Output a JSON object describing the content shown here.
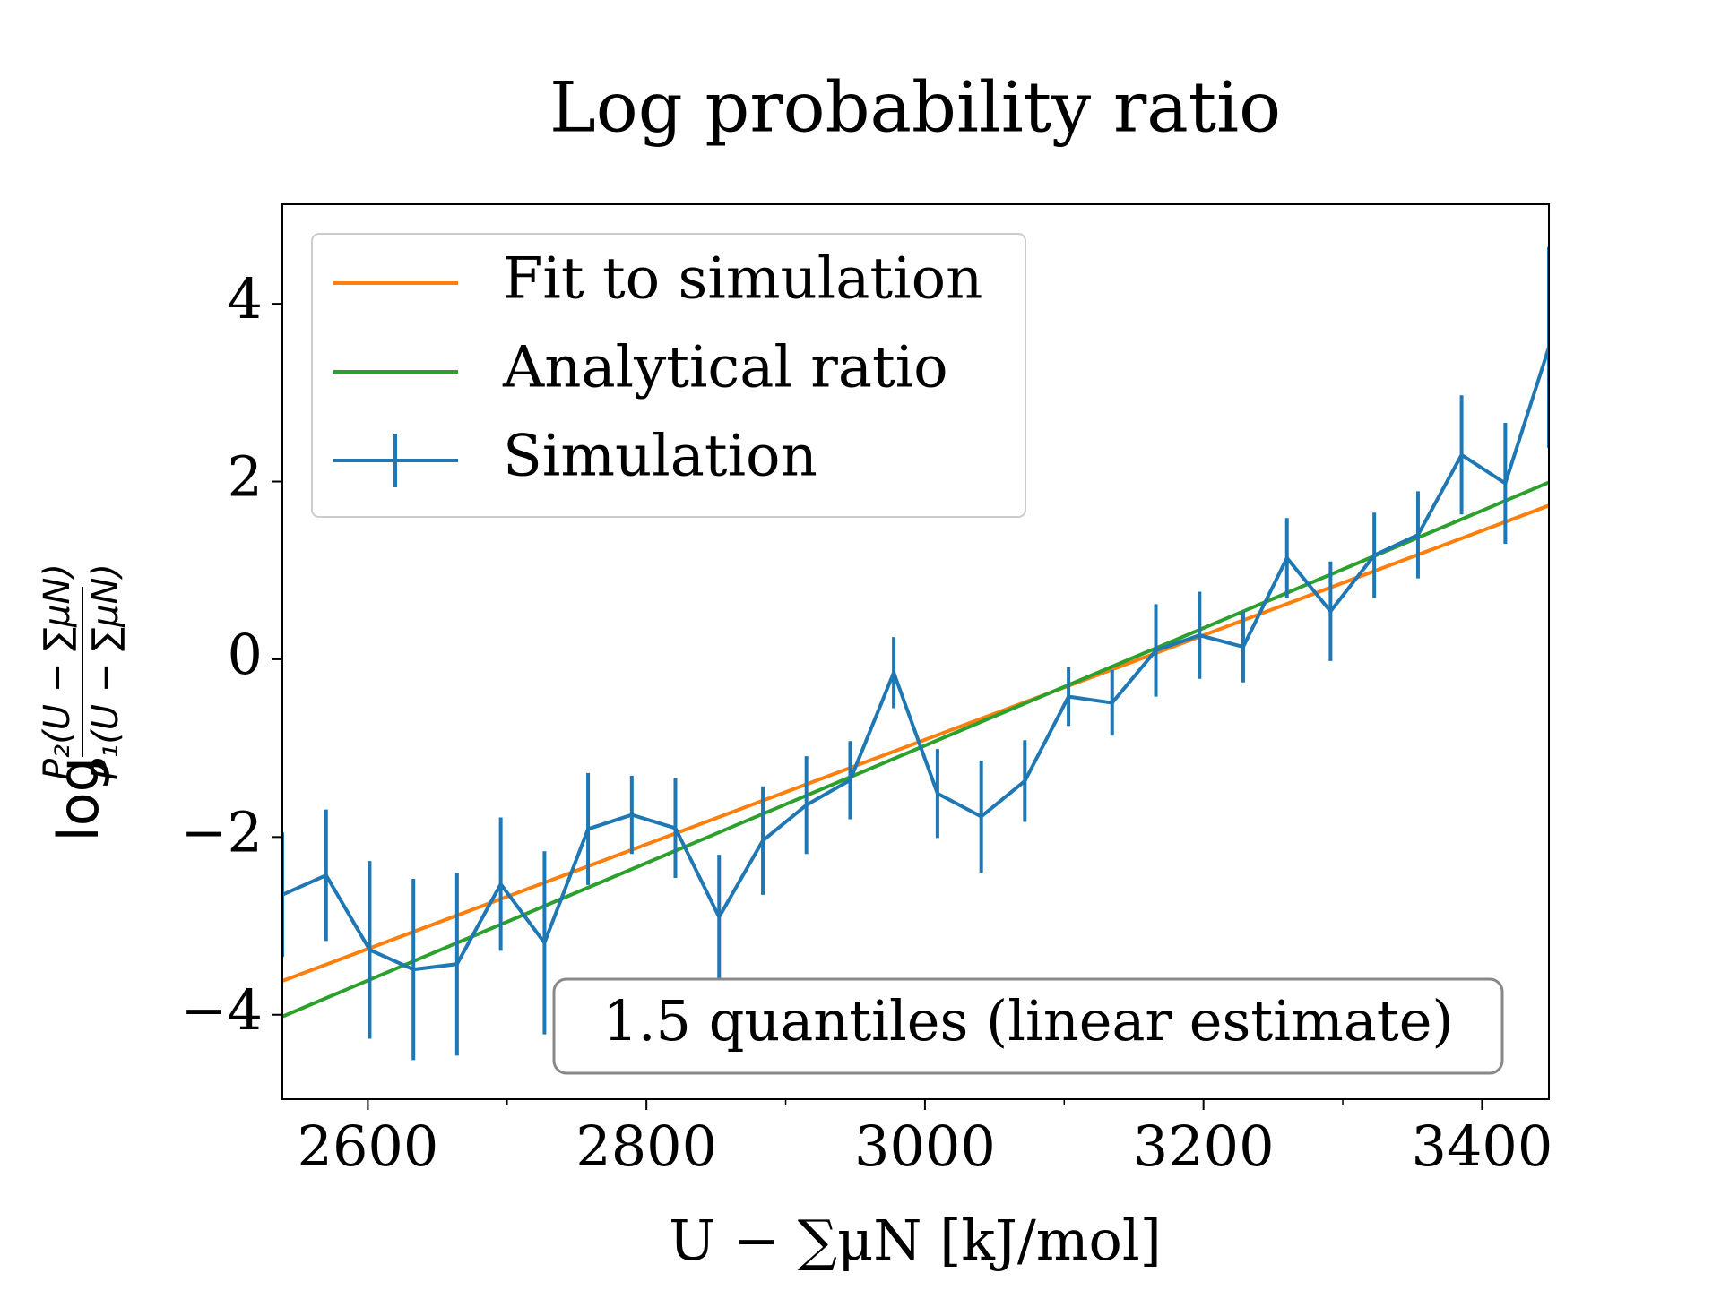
{
  "chart_data": {
    "type": "line",
    "title": "Log probability ratio",
    "xlabel": "U − ∑μN [kJ/mol]",
    "ylabel": {
      "prefix": "log",
      "numerator": "P₂(U − ∑μN)",
      "denominator": "P₁(U − ∑μN)"
    },
    "xlim": [
      2538.6,
      3448
    ],
    "ylim": [
      -4.95,
      5.12
    ],
    "xticks": [
      2600,
      2800,
      3000,
      3200,
      3400
    ],
    "xminorticks": [
      2700,
      2900,
      3100,
      3300
    ],
    "yticks": [
      {
        "value": -4,
        "label": "−4"
      },
      {
        "value": -2,
        "label": "−2"
      },
      0,
      2,
      4
    ],
    "legend": "upper left",
    "annotation": "1.5 quantiles (linear estimate)",
    "series": [
      {
        "name": "Fit to simulation",
        "color": "#ff7f0e",
        "x": [
          2538.6,
          3448
        ],
        "values": [
          -3.62,
          1.73
        ]
      },
      {
        "name": "Analytical ratio",
        "color": "#2ca02c",
        "x": [
          2538.6,
          3448
        ],
        "values": [
          -4.02,
          1.99
        ]
      },
      {
        "name": "Simulation",
        "color": "#1f77b4",
        "x": [
          2538.6,
          2570.0,
          2601.3,
          2632.7,
          2664.0,
          2695.4,
          2726.8,
          2758.1,
          2789.5,
          2820.8,
          2852.2,
          2883.6,
          2914.9,
          2946.3,
          2977.6,
          3009.0,
          3040.4,
          3071.7,
          3103.1,
          3134.4,
          3165.8,
          3197.2,
          3228.5,
          3259.9,
          3291.2,
          3322.6,
          3354.0,
          3385.3,
          3416.7,
          3448
        ],
        "values": [
          -2.65,
          -2.43,
          -3.27,
          -3.49,
          -3.43,
          -2.53,
          -3.19,
          -1.91,
          -1.75,
          -1.9,
          -2.9,
          -2.04,
          -1.64,
          -1.36,
          -0.15,
          -1.51,
          -1.77,
          -1.37,
          -0.42,
          -0.49,
          0.1,
          0.27,
          0.14,
          1.14,
          0.54,
          1.17,
          1.4,
          2.3,
          1.98,
          3.51
        ],
        "errors": [
          0.7,
          0.74,
          1.0,
          1.02,
          1.03,
          0.75,
          1.03,
          0.63,
          0.44,
          0.56,
          0.7,
          0.61,
          0.55,
          0.44,
          0.4,
          0.5,
          0.63,
          0.46,
          0.33,
          0.37,
          0.52,
          0.49,
          0.4,
          0.45,
          0.56,
          0.48,
          0.49,
          0.67,
          0.68,
          1.13
        ]
      }
    ]
  }
}
